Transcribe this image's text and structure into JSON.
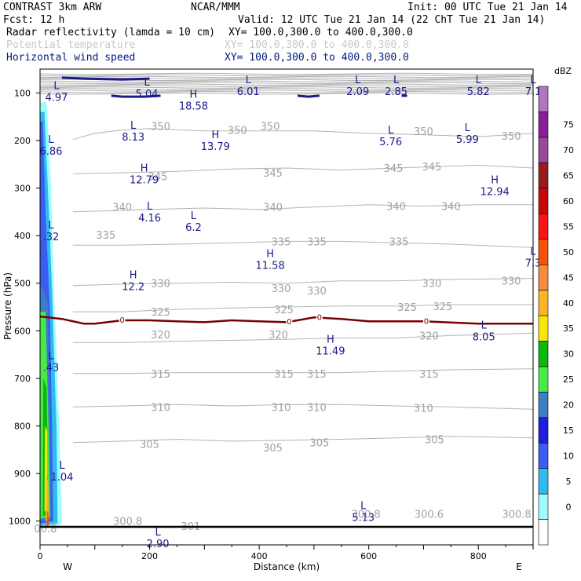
{
  "header": {
    "line1_left": "CONTRAST  3km ARW",
    "line1_mid": "NCAR/MMM",
    "line1_right": "Init: 00 UTC Tue 21 Jan 14",
    "line2_left": "Fcst:   12 h",
    "line2_right": "Valid: 12 UTC Tue 21 Jan 14 (22 ChT Tue 21 Jan 14)",
    "fields": [
      {
        "name": "Radar reflectivity (lamda = 10 cm)",
        "xy": "XY= 100.0,300.0 to 400.0,300.0",
        "color": "#000000"
      },
      {
        "name": "Potential temperature",
        "xy": "XY= 100.0,300.0 to 400.0,300.0",
        "color": "#c8c8c8"
      },
      {
        "name": "Horizontal wind speed",
        "xy": "XY= 100.0,300.0 to 400.0,300.0",
        "color": "#001a80"
      }
    ]
  },
  "colorbar": {
    "unit": "dBZ",
    "labels": [
      "0",
      "5",
      "10",
      "15",
      "20",
      "25",
      "30",
      "35",
      "40",
      "45",
      "50",
      "55",
      "60",
      "65",
      "70",
      "75"
    ],
    "colors": [
      "#ffffff",
      "#9ffcff",
      "#2ebcf0",
      "#3c5ef0",
      "#2020d8",
      "#3a7ec8",
      "#48ea48",
      "#0ab80a",
      "#f8e80a",
      "#fcb424",
      "#f88c3c",
      "#f85008",
      "#fc1414",
      "#c80808",
      "#9a1c1c",
      "#9a4898",
      "#8a1e9a",
      "#b076c0"
    ]
  },
  "chart_data": {
    "type": "cross-section contour",
    "xlabel": "Distance (km)",
    "ylabel": "Pressure (hPa)",
    "xlim": [
      0,
      900
    ],
    "ylim": [
      1050,
      50
    ],
    "x_ticks": [
      "0",
      "200",
      "400",
      "600",
      "800"
    ],
    "x_tick_values": [
      0,
      200,
      400,
      600,
      800
    ],
    "y_ticks": [
      "100",
      "200",
      "300",
      "400",
      "500",
      "600",
      "700",
      "800",
      "900",
      "1000"
    ],
    "y_tick_values": [
      100,
      200,
      300,
      400,
      500,
      600,
      700,
      800,
      900,
      1000
    ],
    "x_end_labels": {
      "left": "W",
      "right": "E"
    },
    "theta_isentropes": [
      {
        "value": 350,
        "p": [
          [
            60,
            198
          ],
          [
            100,
            185
          ],
          [
            150,
            178
          ],
          [
            200,
            175
          ],
          [
            300,
            180
          ],
          [
            400,
            180
          ],
          [
            500,
            180
          ],
          [
            600,
            185
          ],
          [
            700,
            188
          ],
          [
            800,
            192
          ],
          [
            900,
            185
          ]
        ]
      },
      {
        "value": 345,
        "p": [
          [
            60,
            270
          ],
          [
            150,
            268
          ],
          [
            250,
            265
          ],
          [
            350,
            260
          ],
          [
            450,
            258
          ],
          [
            550,
            262
          ],
          [
            650,
            258
          ],
          [
            800,
            252
          ],
          [
            900,
            258
          ]
        ]
      },
      {
        "value": 340,
        "p": [
          [
            60,
            350
          ],
          [
            120,
            348
          ],
          [
            200,
            345
          ],
          [
            300,
            342
          ],
          [
            400,
            345
          ],
          [
            500,
            340
          ],
          [
            600,
            335
          ],
          [
            700,
            338
          ],
          [
            800,
            335
          ],
          [
            900,
            335
          ]
        ]
      },
      {
        "value": 335,
        "p": [
          [
            60,
            420
          ],
          [
            150,
            420
          ],
          [
            250,
            418
          ],
          [
            350,
            415
          ],
          [
            450,
            412
          ],
          [
            550,
            412
          ],
          [
            650,
            415
          ],
          [
            750,
            418
          ],
          [
            900,
            425
          ]
        ]
      },
      {
        "value": 330,
        "p": [
          [
            60,
            505
          ],
          [
            150,
            502
          ],
          [
            250,
            500
          ],
          [
            350,
            498
          ],
          [
            450,
            500
          ],
          [
            550,
            495
          ],
          [
            650,
            495
          ],
          [
            750,
            492
          ],
          [
            900,
            490
          ]
        ]
      },
      {
        "value": 325,
        "p": [
          [
            60,
            560
          ],
          [
            150,
            560
          ],
          [
            250,
            555
          ],
          [
            350,
            552
          ],
          [
            450,
            550
          ],
          [
            550,
            548
          ],
          [
            650,
            548
          ],
          [
            750,
            545
          ],
          [
            900,
            545
          ]
        ]
      },
      {
        "value": 320,
        "p": [
          [
            60,
            625
          ],
          [
            150,
            625
          ],
          [
            250,
            622
          ],
          [
            350,
            620
          ],
          [
            450,
            618
          ],
          [
            550,
            615
          ],
          [
            650,
            615
          ],
          [
            750,
            610
          ],
          [
            900,
            605
          ]
        ]
      },
      {
        "value": 315,
        "p": [
          [
            60,
            690
          ],
          [
            150,
            690
          ],
          [
            250,
            688
          ],
          [
            350,
            688
          ],
          [
            450,
            688
          ],
          [
            550,
            688
          ],
          [
            650,
            685
          ],
          [
            750,
            682
          ],
          [
            900,
            680
          ]
        ]
      },
      {
        "value": 310,
        "p": [
          [
            60,
            760
          ],
          [
            150,
            758
          ],
          [
            250,
            755
          ],
          [
            350,
            758
          ],
          [
            450,
            755
          ],
          [
            550,
            755
          ],
          [
            650,
            758
          ],
          [
            750,
            760
          ],
          [
            900,
            765
          ]
        ]
      },
      {
        "value": 305,
        "p": [
          [
            60,
            835
          ],
          [
            150,
            832
          ],
          [
            250,
            828
          ],
          [
            350,
            832
          ],
          [
            450,
            830
          ],
          [
            550,
            828
          ],
          [
            650,
            825
          ],
          [
            750,
            822
          ],
          [
            900,
            825
          ]
        ]
      }
    ],
    "theta_labels": [
      {
        "text": "350",
        "x": 220,
        "p": 170
      },
      {
        "text": "350",
        "x": 360,
        "p": 178
      },
      {
        "text": "350",
        "x": 420,
        "p": 170
      },
      {
        "text": "350",
        "x": 700,
        "p": 180
      },
      {
        "text": "350",
        "x": 860,
        "p": 190
      },
      {
        "text": "345",
        "x": 215,
        "p": 275
      },
      {
        "text": "345",
        "x": 425,
        "p": 268
      },
      {
        "text": "345",
        "x": 645,
        "p": 258
      },
      {
        "text": "345",
        "x": 715,
        "p": 255
      },
      {
        "text": "340",
        "x": 150,
        "p": 340
      },
      {
        "text": "340",
        "x": 425,
        "p": 340
      },
      {
        "text": "340",
        "x": 650,
        "p": 338
      },
      {
        "text": "340",
        "x": 750,
        "p": 338
      },
      {
        "text": "335",
        "x": 120,
        "p": 398
      },
      {
        "text": "335",
        "x": 440,
        "p": 412
      },
      {
        "text": "335",
        "x": 505,
        "p": 412
      },
      {
        "text": "335",
        "x": 655,
        "p": 412
      },
      {
        "text": "330",
        "x": 220,
        "p": 500
      },
      {
        "text": "330",
        "x": 440,
        "p": 510
      },
      {
        "text": "330",
        "x": 505,
        "p": 515
      },
      {
        "text": "330",
        "x": 715,
        "p": 500
      },
      {
        "text": "330",
        "x": 860,
        "p": 495
      },
      {
        "text": "325",
        "x": 220,
        "p": 560
      },
      {
        "text": "325",
        "x": 445,
        "p": 555
      },
      {
        "text": "325",
        "x": 670,
        "p": 550
      },
      {
        "text": "325",
        "x": 735,
        "p": 548
      },
      {
        "text": "320",
        "x": 220,
        "p": 608
      },
      {
        "text": "320",
        "x": 435,
        "p": 608
      },
      {
        "text": "320",
        "x": 710,
        "p": 610
      },
      {
        "text": "315",
        "x": 220,
        "p": 690
      },
      {
        "text": "315",
        "x": 445,
        "p": 690
      },
      {
        "text": "315",
        "x": 505,
        "p": 690
      },
      {
        "text": "315",
        "x": 710,
        "p": 690
      },
      {
        "text": "310",
        "x": 220,
        "p": 760
      },
      {
        "text": "310",
        "x": 440,
        "p": 760
      },
      {
        "text": "310",
        "x": 505,
        "p": 760
      },
      {
        "text": "310",
        "x": 700,
        "p": 762
      },
      {
        "text": "305",
        "x": 200,
        "p": 838
      },
      {
        "text": "305",
        "x": 425,
        "p": 845
      },
      {
        "text": "305",
        "x": 510,
        "p": 835
      },
      {
        "text": "305",
        "x": 720,
        "p": 828
      },
      {
        "text": "300.8",
        "x": 160,
        "p": 1000
      },
      {
        "text": "301",
        "x": 275,
        "p": 1010
      },
      {
        "text": "300.8",
        "x": 595,
        "p": 985
      },
      {
        "text": "300.6",
        "x": 710,
        "p": 985
      },
      {
        "text": "300.8",
        "x": 870,
        "p": 985
      },
      {
        "text": "00.8",
        "x": 10,
        "p": 1015
      }
    ],
    "zero_contour": {
      "label": "0",
      "p": [
        [
          0,
          570
        ],
        [
          40,
          575
        ],
        [
          80,
          585
        ],
        [
          100,
          585
        ],
        [
          150,
          578
        ],
        [
          200,
          578
        ],
        [
          250,
          580
        ],
        [
          300,
          582
        ],
        [
          350,
          578
        ],
        [
          400,
          580
        ],
        [
          450,
          582
        ],
        [
          500,
          572
        ],
        [
          550,
          575
        ],
        [
          600,
          580
        ],
        [
          700,
          580
        ],
        [
          800,
          585
        ],
        [
          900,
          585
        ]
      ],
      "label_x": [
        150,
        455,
        510,
        705
      ]
    },
    "wind_extrema": [
      {
        "type": "L",
        "value": "4.97",
        "x": 10,
        "p": 92
      },
      {
        "type": "L",
        "value": "5.04",
        "x": 175,
        "p": 85
      },
      {
        "type": "H",
        "value": "18.58",
        "x": 260,
        "p": 110
      },
      {
        "type": "L",
        "value": "6.01",
        "x": 360,
        "p": 80
      },
      {
        "type": "L",
        "value": "2.09",
        "x": 560,
        "p": 80
      },
      {
        "type": "L",
        "value": "2.85",
        "x": 630,
        "p": 80
      },
      {
        "type": "L",
        "value": "5.82",
        "x": 780,
        "p": 80
      },
      {
        "type": "L",
        "value": "7.1",
        "x": 880,
        "p": 80
      },
      {
        "type": "L",
        "value": "8.13",
        "x": 150,
        "p": 175
      },
      {
        "type": "L",
        "value": "6.86",
        "x": 0,
        "p": 205
      },
      {
        "type": "H",
        "value": "13.79",
        "x": 300,
        "p": 195
      },
      {
        "type": "L",
        "value": "5.76",
        "x": 620,
        "p": 185
      },
      {
        "type": "L",
        "value": "5.99",
        "x": 760,
        "p": 180
      },
      {
        "type": "H",
        "value": "12.79",
        "x": 170,
        "p": 265
      },
      {
        "type": "H",
        "value": "12.94",
        "x": 810,
        "p": 290
      },
      {
        "type": "L",
        "value": "4.16",
        "x": 180,
        "p": 345
      },
      {
        "type": "L",
        "value": "6.2",
        "x": 260,
        "p": 365
      },
      {
        "type": "L",
        "value": ".32",
        "x": 0,
        "p": 385
      },
      {
        "type": "H",
        "value": "11.58",
        "x": 400,
        "p": 445
      },
      {
        "type": "L",
        "value": "7.3",
        "x": 880,
        "p": 440
      },
      {
        "type": "H",
        "value": "12.2",
        "x": 150,
        "p": 490
      },
      {
        "type": "L",
        "value": "8.05",
        "x": 790,
        "p": 595
      },
      {
        "type": "H",
        "value": "11.49",
        "x": 510,
        "p": 625
      },
      {
        "type": "L",
        "value": ".43",
        "x": 0,
        "p": 660
      },
      {
        "type": "L",
        "value": "1.04",
        "x": 20,
        "p": 890
      },
      {
        "type": "L",
        "value": "5.13",
        "x": 570,
        "p": 975
      },
      {
        "type": "L",
        "value": "2.90",
        "x": 195,
        "p": 1030
      }
    ],
    "reflectivity": [
      {
        "dbz": 5,
        "poly": [
          [
            0,
            1010
          ],
          [
            0,
            120
          ],
          [
            12,
            120
          ],
          [
            20,
            300
          ],
          [
            25,
            500
          ],
          [
            35,
            800
          ],
          [
            40,
            1000
          ],
          [
            35,
            1010
          ]
        ]
      },
      {
        "dbz": 10,
        "poly": [
          [
            0,
            1010
          ],
          [
            0,
            140
          ],
          [
            8,
            140
          ],
          [
            15,
            320
          ],
          [
            22,
            520
          ],
          [
            30,
            800
          ],
          [
            32,
            1005
          ]
        ]
      },
      {
        "dbz": 15,
        "poly": [
          [
            0,
            1005
          ],
          [
            0,
            160
          ],
          [
            5,
            160
          ],
          [
            10,
            350
          ],
          [
            18,
            560
          ],
          [
            22,
            820
          ],
          [
            24,
            1000
          ]
        ]
      },
      {
        "dbz": 25,
        "poly": [
          [
            0,
            1000
          ],
          [
            0,
            500
          ],
          [
            14,
            540
          ],
          [
            18,
            800
          ],
          [
            20,
            995
          ]
        ]
      },
      {
        "dbz": 30,
        "poly": [
          [
            0,
            995
          ],
          [
            0,
            560
          ],
          [
            10,
            560
          ],
          [
            16,
            820
          ],
          [
            18,
            990
          ]
        ]
      },
      {
        "dbz": 35,
        "poly": [
          [
            5,
            990
          ],
          [
            6,
            700
          ],
          [
            12,
            720
          ],
          [
            15,
            985
          ]
        ]
      },
      {
        "dbz": 40,
        "poly": [
          [
            8,
            980
          ],
          [
            9,
            800
          ],
          [
            13,
            810
          ],
          [
            14,
            975
          ]
        ]
      },
      {
        "dbz": 45,
        "poly": [
          [
            10,
            1000
          ],
          [
            12,
            900
          ],
          [
            15,
            920
          ],
          [
            16,
            1000
          ]
        ]
      },
      {
        "dbz": 55,
        "poly": [
          [
            12,
            1010
          ],
          [
            13,
            980
          ],
          [
            15,
            980
          ],
          [
            16,
            1010
          ]
        ]
      }
    ],
    "surface_p": 1012
  }
}
